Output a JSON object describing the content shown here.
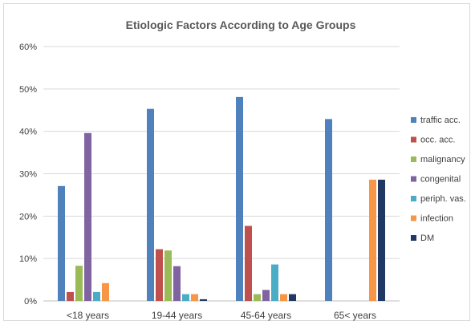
{
  "chart_data": {
    "type": "bar",
    "title": "Etiologic Factors According to Age Groups",
    "xlabel": "",
    "ylabel": "",
    "ylim": [
      0,
      60
    ],
    "yticks": [
      "0%",
      "10%",
      "20%",
      "30%",
      "40%",
      "50%",
      "60%"
    ],
    "categories": [
      "<18 years",
      "19-44 years",
      "45-64 years",
      "65< years"
    ],
    "series": [
      {
        "name": "traffic acc.",
        "color": "#4f81bd",
        "values": [
          27.1,
          45.3,
          48.1,
          42.9
        ]
      },
      {
        "name": "occ. acc.",
        "color": "#c0504d",
        "values": [
          2.1,
          12.2,
          17.7,
          0
        ]
      },
      {
        "name": "malignancy",
        "color": "#9bbb59",
        "values": [
          8.3,
          11.9,
          1.6,
          0
        ]
      },
      {
        "name": "congenital",
        "color": "#8064a2",
        "values": [
          39.6,
          8.2,
          2.6,
          0
        ]
      },
      {
        "name": "periph. vas.",
        "color": "#4bacc6",
        "values": [
          2.1,
          1.6,
          8.6,
          0
        ]
      },
      {
        "name": "infection",
        "color": "#f79646",
        "values": [
          4.2,
          1.6,
          1.6,
          28.6
        ]
      },
      {
        "name": "DM",
        "color": "#1f3864",
        "values": [
          0,
          0.4,
          1.6,
          28.6
        ]
      }
    ],
    "grid": true,
    "legend": "right"
  }
}
